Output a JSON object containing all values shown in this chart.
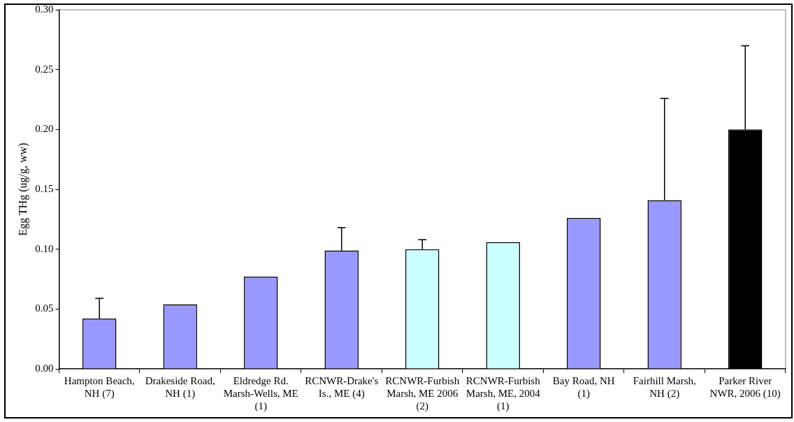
{
  "chart_data": {
    "type": "bar",
    "ylabel": "Egg THg (ug/g, ww)",
    "categories": [
      "Hampton Beach, NH (7)",
      "Drakeside Road, NH (1)",
      "Eldredge Rd. Marsh-Wells, ME (1)",
      "RCNWR-Drake's Is., ME (4)",
      "RCNWR-Furbish Marsh, ME 2006 (2)",
      "RCNWR-Furbish Marsh, ME, 2004 (1)",
      "Bay Road, NH (1)",
      "Fairhill Marsh, NH (2)",
      "Parker River NWR, 2006 (10)"
    ],
    "values": [
      0.042,
      0.054,
      0.077,
      0.099,
      0.1,
      0.106,
      0.126,
      0.141,
      0.2
    ],
    "colors": [
      "#9999ff",
      "#9999ff",
      "#9999ff",
      "#9999ff",
      "#ccffff",
      "#ccffff",
      "#9999ff",
      "#9999ff",
      "#000000"
    ],
    "errors": [
      [
        0.042,
        0.059
      ],
      null,
      null,
      [
        0.099,
        0.118
      ],
      [
        0.1,
        0.108
      ],
      null,
      null,
      [
        0.141,
        0.226
      ],
      [
        0.2,
        0.27
      ]
    ],
    "ylim": [
      0,
      0.3
    ],
    "yticks": [
      {
        "value": 0,
        "label": "0.00"
      },
      0.05,
      {
        "value": 0.1,
        "label": "0.10"
      },
      0.15,
      {
        "value": 0.2,
        "label": "0.20"
      },
      0.25,
      {
        "value": 0.3,
        "label": "0.30"
      }
    ],
    "grid": false,
    "legend": false
  }
}
